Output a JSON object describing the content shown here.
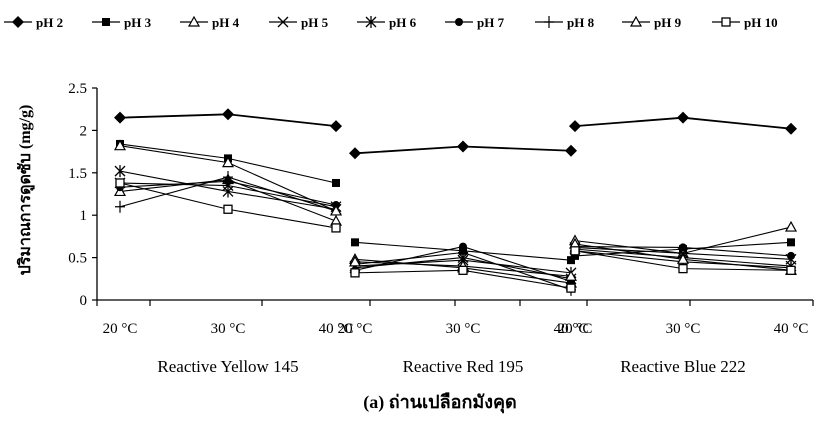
{
  "chart_data": {
    "type": "line",
    "caption": "(a) ถ่านเปลือกมังคุด",
    "ylabel": "ปริมาณการดูดซับ (mg/g)",
    "ylim": [
      0,
      2.5
    ],
    "yticks": [
      "0",
      "0.5",
      "1",
      "1.5",
      "2",
      "2.5"
    ],
    "grid": false,
    "legend_position": "top",
    "groups": [
      {
        "name": "Reactive Yellow 145",
        "temps": [
          "20 °C",
          "30 °C",
          "40 °C"
        ]
      },
      {
        "name": "Reactive Red 195",
        "temps": [
          "20 °C",
          "30 °C",
          "40 °C"
        ]
      },
      {
        "name": "Reactive Blue 222",
        "temps": [
          "20 °C",
          "30 °C",
          "40 °C"
        ]
      }
    ],
    "series": [
      {
        "name": "pH 2",
        "marker": "diamond",
        "values": [
          [
            2.15,
            2.19,
            2.05
          ],
          [
            1.73,
            1.81,
            1.76
          ],
          [
            2.05,
            2.15,
            2.02
          ]
        ]
      },
      {
        "name": "pH 3",
        "marker": "square-filled",
        "values": [
          [
            1.84,
            1.67,
            1.38
          ],
          [
            0.68,
            0.58,
            0.47
          ],
          [
            0.52,
            0.6,
            0.68
          ]
        ]
      },
      {
        "name": "pH 4",
        "marker": "triangle-open",
        "values": [
          [
            1.28,
            1.42,
            0.93
          ],
          [
            0.48,
            0.38,
            0.2
          ],
          [
            0.7,
            0.55,
            0.86
          ]
        ]
      },
      {
        "name": "pH 5",
        "marker": "x",
        "values": [
          [
            1.38,
            1.35,
            1.1
          ],
          [
            0.38,
            0.5,
            0.25
          ],
          [
            0.62,
            0.55,
            0.48
          ]
        ]
      },
      {
        "name": "pH 6",
        "marker": "asterisk",
        "values": [
          [
            1.52,
            1.28,
            1.07
          ],
          [
            0.4,
            0.47,
            0.32
          ],
          [
            0.6,
            0.5,
            0.4
          ]
        ]
      },
      {
        "name": "pH 7",
        "marker": "circle-filled",
        "values": [
          [
            1.33,
            1.4,
            1.12
          ],
          [
            0.35,
            0.63,
            0.22
          ],
          [
            0.63,
            0.62,
            0.52
          ]
        ]
      },
      {
        "name": "pH 8",
        "marker": "plus",
        "values": [
          [
            1.1,
            1.45,
            1.05
          ],
          [
            0.42,
            0.56,
            0.12
          ],
          [
            0.58,
            0.45,
            0.38
          ]
        ]
      },
      {
        "name": "pH 9",
        "marker": "triangle-open",
        "values": [
          [
            1.82,
            1.62,
            1.05
          ],
          [
            0.45,
            0.4,
            0.28
          ],
          [
            0.66,
            0.48,
            0.35
          ]
        ]
      },
      {
        "name": "pH 10",
        "marker": "square-open",
        "values": [
          [
            1.38,
            1.07,
            0.85
          ],
          [
            0.32,
            0.35,
            0.14
          ],
          [
            0.58,
            0.37,
            0.35
          ]
        ]
      }
    ]
  }
}
